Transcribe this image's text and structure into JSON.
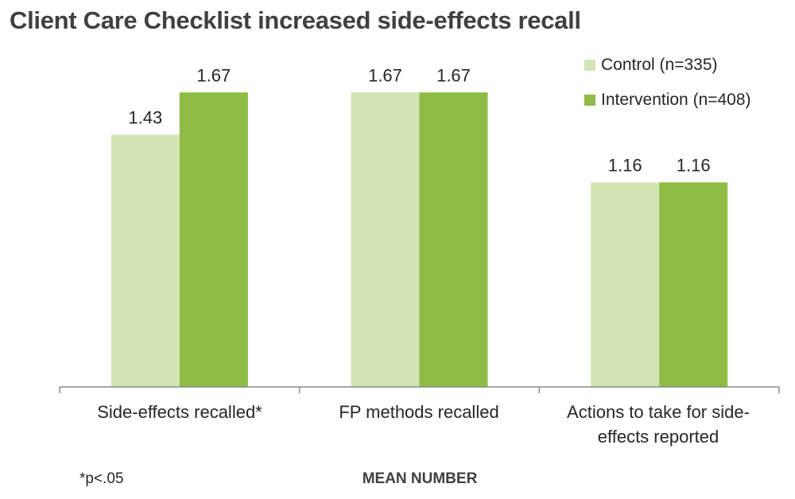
{
  "chart_data": {
    "type": "bar",
    "title": "Client Care Checklist increased side-effects recall",
    "xlabel": "MEAN NUMBER",
    "ylabel": "",
    "ylim": [
      0,
      2
    ],
    "grid": false,
    "legend_position": "top-right",
    "categories": [
      "Side-effects recalled*",
      "FP methods recalled",
      "Actions to take for side-effects reported"
    ],
    "category_display": [
      [
        "Side-effects recalled*"
      ],
      [
        "FP methods recalled"
      ],
      [
        "Actions to take for side-",
        "effects reported"
      ]
    ],
    "series": [
      {
        "name": "Control (n=335)",
        "values": [
          1.43,
          1.67,
          1.16
        ],
        "color": "#d3e5b5"
      },
      {
        "name": "Intervention (n=408)",
        "values": [
          1.67,
          1.67,
          1.16
        ],
        "color": "#8fbc45"
      }
    ],
    "value_labels": [
      [
        "1.43",
        "1.67",
        "1.16"
      ],
      [
        "1.67",
        "1.67",
        "1.16"
      ]
    ],
    "footnote": "*p<.05"
  }
}
